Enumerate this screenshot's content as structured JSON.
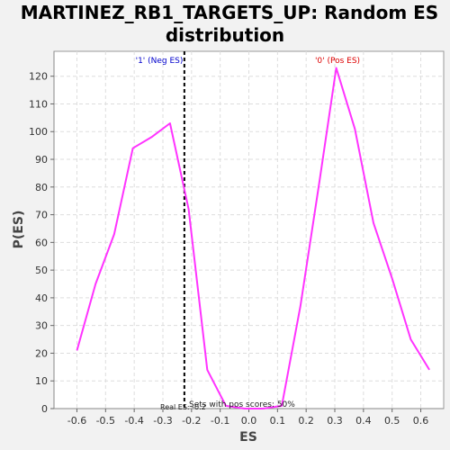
{
  "chart_data": {
    "type": "line",
    "title_line1": "MARTINEZ_RB1_TARGETS_UP: Random ES",
    "title_line2": "distribution",
    "xlabel": "ES",
    "ylabel": "P(ES)",
    "xlim": [
      -0.68,
      0.68
    ],
    "ylim": [
      0,
      129
    ],
    "x_ticks": [
      -0.6,
      -0.5,
      -0.4,
      -0.3,
      -0.2,
      -0.1,
      0.0,
      0.1,
      0.2,
      0.3,
      0.4,
      0.5,
      0.6
    ],
    "x_tick_labels": [
      "-0.6",
      "-0.5",
      "-0.4",
      "-0.3",
      "-0.2",
      "-0.1",
      "0.0",
      "0.1",
      "0.2",
      "0.3",
      "0.4",
      "0.5",
      "0.6"
    ],
    "y_ticks": [
      0,
      10,
      20,
      30,
      40,
      50,
      60,
      70,
      80,
      90,
      100,
      110,
      120
    ],
    "y_tick_labels": [
      "0",
      "10",
      "20",
      "30",
      "40",
      "50",
      "60",
      "70",
      "80",
      "90",
      "100",
      "110",
      "120"
    ],
    "grid": true,
    "series": [
      {
        "color": "#ff33ff",
        "x": [
          -0.6,
          -0.535,
          -0.47,
          -0.405,
          -0.34,
          -0.275,
          -0.21,
          -0.145,
          -0.08,
          -0.015,
          0.05,
          0.115,
          0.18,
          0.245,
          0.305,
          0.37,
          0.435,
          0.5,
          0.565,
          0.63
        ],
        "y": [
          21,
          45,
          63,
          94,
          98,
          103,
          72,
          14,
          1,
          0,
          0,
          1,
          37,
          81,
          123,
          101,
          67,
          47,
          25,
          14
        ]
      }
    ],
    "real_es_line": {
      "x": -0.225,
      "color": "#000000"
    },
    "annotations": {
      "neg_label": "'1' (Neg ES)",
      "neg_color": "#0000cc",
      "pos_label": "'0' (Pos ES)",
      "pos_color": "#dd0000",
      "real_es_text": "Real ES: -0.2",
      "pos_scores_text": "Sets with pos scores: 50%"
    }
  }
}
